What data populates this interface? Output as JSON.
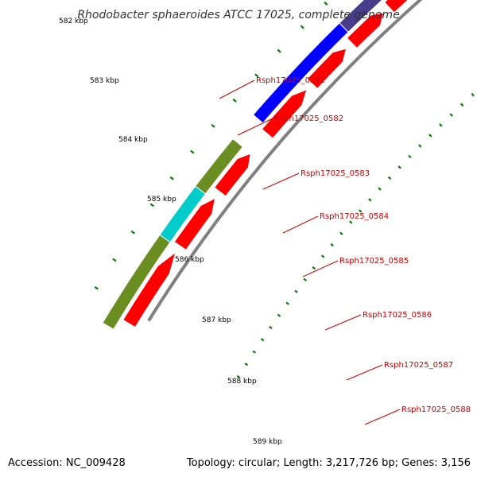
{
  "title": "Rhodobacter sphaeroides ATCC 17025, complete genome",
  "accession": "Accession: NC_009428",
  "summary": "Topology: circular; Length: 3,217,726 bp; Genes: 3,156",
  "kbp_labels": [
    "582 kbp",
    "583 kbp",
    "584 kbp",
    "585 kbp",
    "586 kbp",
    "587 kbp",
    "588 kbp",
    "589 kbp"
  ],
  "genes": [
    {
      "label": "Rsph17025_0581",
      "cog_color": "#00cccc"
    },
    {
      "label": "Rsph17025_0582",
      "cog_color": "#6b8e23"
    },
    {
      "label": "Rsph17025_0583",
      "cog_color": "#0000ff"
    },
    {
      "label": "Rsph17025_0584",
      "cog_color": "#0000ff"
    },
    {
      "label": "Rsph17025_0585",
      "cog_color": "#0000ff"
    },
    {
      "label": "Rsph17025_0586",
      "cog_color": "#483d8b"
    },
    {
      "label": "Rsph17025_0587",
      "cog_color": "#483d8b"
    },
    {
      "label": "Rsph17025_0588",
      "cog_color": "#483d8b"
    }
  ],
  "colors": {
    "cds": "#ff0000",
    "backbone": "#808080",
    "tick": "#008000",
    "label": "#cc0000",
    "olive": "#6b8e23",
    "cyan": "#00cccc",
    "blue": "#0000ff",
    "slate": "#483d8b",
    "green": "#00cc00"
  }
}
